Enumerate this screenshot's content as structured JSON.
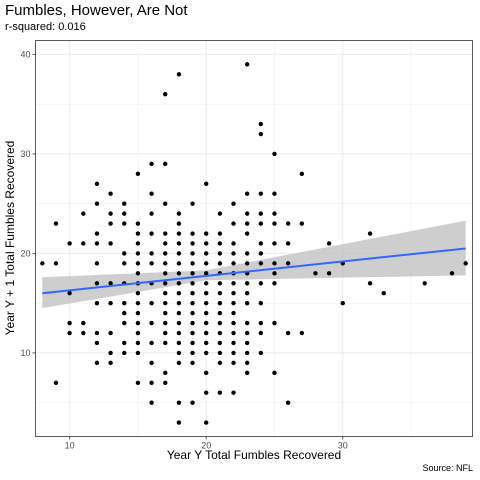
{
  "chart_data": {
    "type": "scatter",
    "title": "Fumbles, However, Are Not",
    "subtitle": "r-squared: 0.016",
    "caption": "Source: NFL",
    "xlabel": "Year Y Total Fumbles Recovered",
    "ylabel": "Year Y + 1 Total Fumbles Recovered",
    "xlim": [
      7.5,
      39.5
    ],
    "ylim": [
      1.6,
      41.4
    ],
    "xticks": [
      10,
      20,
      30,
      40
    ],
    "yticks": [
      10,
      20,
      30,
      40
    ],
    "grid": true,
    "colors": {
      "points": "#000000",
      "fit_line": "#3366FF",
      "confidence_band": "#BEBEBE",
      "panel_border": "#333333",
      "grid": "#EBEBEB"
    },
    "points": [
      [
        8,
        19
      ],
      [
        9,
        23
      ],
      [
        9,
        19
      ],
      [
        9,
        7
      ],
      [
        10,
        21
      ],
      [
        10,
        16
      ],
      [
        10,
        13
      ],
      [
        10,
        12
      ],
      [
        11,
        24
      ],
      [
        11,
        21
      ],
      [
        11,
        13
      ],
      [
        11,
        12
      ],
      [
        12,
        27
      ],
      [
        12,
        25
      ],
      [
        12,
        22
      ],
      [
        12,
        21
      ],
      [
        12,
        19
      ],
      [
        12,
        17
      ],
      [
        12,
        15
      ],
      [
        12,
        12
      ],
      [
        12,
        11
      ],
      [
        12,
        9
      ],
      [
        13,
        26
      ],
      [
        13,
        24
      ],
      [
        13,
        23
      ],
      [
        13,
        21
      ],
      [
        13,
        17
      ],
      [
        13,
        15
      ],
      [
        13,
        12
      ],
      [
        13,
        10
      ],
      [
        13,
        9
      ],
      [
        14,
        25
      ],
      [
        14,
        24
      ],
      [
        14,
        23
      ],
      [
        14,
        20
      ],
      [
        14,
        19
      ],
      [
        14,
        17
      ],
      [
        14,
        15
      ],
      [
        14,
        14
      ],
      [
        14,
        13
      ],
      [
        14,
        11
      ],
      [
        14,
        10
      ],
      [
        15,
        28
      ],
      [
        15,
        23
      ],
      [
        15,
        22
      ],
      [
        15,
        21
      ],
      [
        15,
        20
      ],
      [
        15,
        19
      ],
      [
        15,
        18
      ],
      [
        15,
        17
      ],
      [
        15,
        16
      ],
      [
        15,
        15
      ],
      [
        15,
        14
      ],
      [
        15,
        13
      ],
      [
        15,
        12
      ],
      [
        15,
        11
      ],
      [
        15,
        10
      ],
      [
        15,
        7
      ],
      [
        16,
        29
      ],
      [
        16,
        26
      ],
      [
        16,
        24
      ],
      [
        16,
        22
      ],
      [
        16,
        20
      ],
      [
        16,
        19
      ],
      [
        16,
        17
      ],
      [
        16,
        15
      ],
      [
        16,
        13
      ],
      [
        16,
        11
      ],
      [
        16,
        9
      ],
      [
        16,
        7
      ],
      [
        16,
        5
      ],
      [
        17,
        36
      ],
      [
        17,
        29
      ],
      [
        17,
        25
      ],
      [
        17,
        22
      ],
      [
        17,
        21
      ],
      [
        17,
        20
      ],
      [
        17,
        19
      ],
      [
        17,
        18
      ],
      [
        17,
        17
      ],
      [
        17,
        16
      ],
      [
        17,
        15
      ],
      [
        17,
        14
      ],
      [
        17,
        13
      ],
      [
        17,
        12
      ],
      [
        17,
        11
      ],
      [
        17,
        8
      ],
      [
        17,
        7
      ],
      [
        18,
        38
      ],
      [
        18,
        24
      ],
      [
        18,
        23
      ],
      [
        18,
        22
      ],
      [
        18,
        21
      ],
      [
        18,
        20
      ],
      [
        18,
        19
      ],
      [
        18,
        18
      ],
      [
        18,
        17
      ],
      [
        18,
        16
      ],
      [
        18,
        15
      ],
      [
        18,
        14
      ],
      [
        18,
        13
      ],
      [
        18,
        12
      ],
      [
        18,
        11
      ],
      [
        18,
        10
      ],
      [
        18,
        9
      ],
      [
        18,
        5
      ],
      [
        18,
        3
      ],
      [
        19,
        25
      ],
      [
        19,
        22
      ],
      [
        19,
        21
      ],
      [
        19,
        20
      ],
      [
        19,
        19
      ],
      [
        19,
        18
      ],
      [
        19,
        17
      ],
      [
        19,
        16
      ],
      [
        19,
        15
      ],
      [
        19,
        14
      ],
      [
        19,
        13
      ],
      [
        19,
        12
      ],
      [
        19,
        11
      ],
      [
        19,
        10
      ],
      [
        19,
        9
      ],
      [
        19,
        5
      ],
      [
        20,
        27
      ],
      [
        20,
        22
      ],
      [
        20,
        21
      ],
      [
        20,
        20
      ],
      [
        20,
        19
      ],
      [
        20,
        18
      ],
      [
        20,
        17
      ],
      [
        20,
        16
      ],
      [
        20,
        15
      ],
      [
        20,
        14
      ],
      [
        20,
        13
      ],
      [
        20,
        12
      ],
      [
        20,
        11
      ],
      [
        20,
        10
      ],
      [
        20,
        8
      ],
      [
        20,
        6
      ],
      [
        20,
        3
      ],
      [
        21,
        24
      ],
      [
        21,
        22
      ],
      [
        21,
        21
      ],
      [
        21,
        20
      ],
      [
        21,
        19
      ],
      [
        21,
        18
      ],
      [
        21,
        17
      ],
      [
        21,
        16
      ],
      [
        21,
        15
      ],
      [
        21,
        14
      ],
      [
        21,
        13
      ],
      [
        21,
        12
      ],
      [
        21,
        11
      ],
      [
        21,
        10
      ],
      [
        21,
        9
      ],
      [
        21,
        6
      ],
      [
        22,
        25
      ],
      [
        22,
        23
      ],
      [
        22,
        21
      ],
      [
        22,
        20
      ],
      [
        22,
        19
      ],
      [
        22,
        18
      ],
      [
        22,
        17
      ],
      [
        22,
        16
      ],
      [
        22,
        15
      ],
      [
        22,
        14
      ],
      [
        22,
        13
      ],
      [
        22,
        12
      ],
      [
        22,
        11
      ],
      [
        22,
        10
      ],
      [
        22,
        9
      ],
      [
        22,
        6
      ],
      [
        23,
        39
      ],
      [
        23,
        26
      ],
      [
        23,
        24
      ],
      [
        23,
        23
      ],
      [
        23,
        22
      ],
      [
        23,
        20
      ],
      [
        23,
        19
      ],
      [
        23,
        18
      ],
      [
        23,
        17
      ],
      [
        23,
        16
      ],
      [
        23,
        15
      ],
      [
        23,
        13
      ],
      [
        23,
        12
      ],
      [
        23,
        11
      ],
      [
        23,
        10
      ],
      [
        23,
        9
      ],
      [
        23,
        8
      ],
      [
        24,
        33
      ],
      [
        24,
        32
      ],
      [
        24,
        26
      ],
      [
        24,
        24
      ],
      [
        24,
        23
      ],
      [
        24,
        21
      ],
      [
        24,
        20
      ],
      [
        24,
        19
      ],
      [
        24,
        17
      ],
      [
        24,
        15
      ],
      [
        24,
        13
      ],
      [
        24,
        12
      ],
      [
        24,
        10
      ],
      [
        25,
        30
      ],
      [
        25,
        26
      ],
      [
        25,
        24
      ],
      [
        25,
        23
      ],
      [
        25,
        21
      ],
      [
        25,
        19
      ],
      [
        25,
        18
      ],
      [
        25,
        17
      ],
      [
        25,
        13
      ],
      [
        25,
        8
      ],
      [
        26,
        23
      ],
      [
        26,
        21
      ],
      [
        26,
        19
      ],
      [
        26,
        12
      ],
      [
        26,
        5
      ],
      [
        27,
        28
      ],
      [
        27,
        23
      ],
      [
        27,
        12
      ],
      [
        28,
        18
      ],
      [
        29,
        21
      ],
      [
        29,
        18
      ],
      [
        30,
        19
      ],
      [
        30,
        15
      ],
      [
        32,
        22
      ],
      [
        32,
        17
      ],
      [
        33,
        16
      ],
      [
        36,
        17
      ],
      [
        38,
        18
      ],
      [
        39,
        19
      ]
    ],
    "fit_line": {
      "x": [
        8,
        39
      ],
      "y": [
        16.0,
        20.5
      ]
    },
    "confidence_band": {
      "x": [
        8,
        20,
        39
      ],
      "lower": [
        14.5,
        17.3,
        17.8
      ],
      "upper": [
        17.6,
        18.3,
        23.3
      ]
    }
  }
}
